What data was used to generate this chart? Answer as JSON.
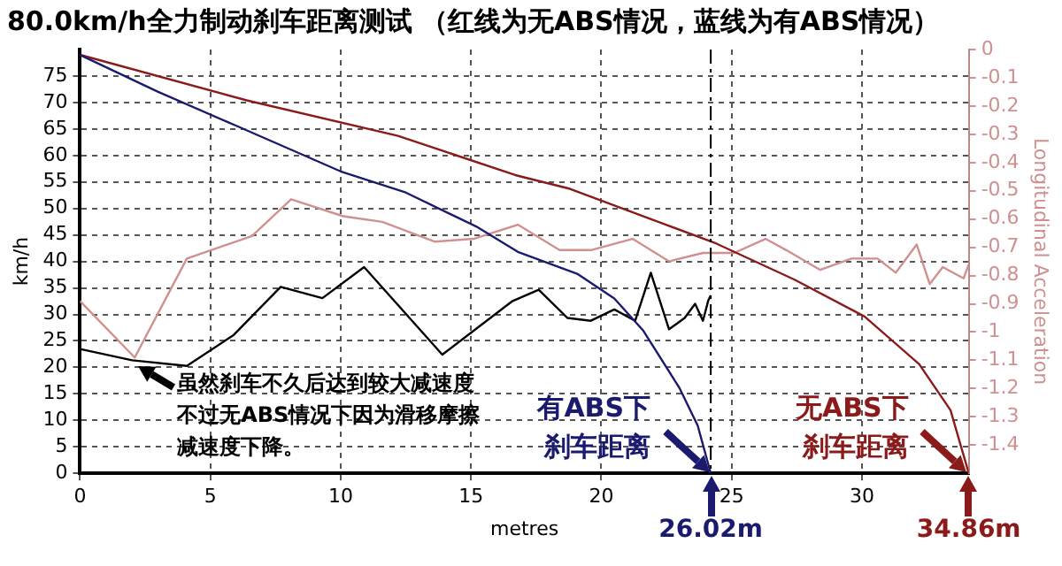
{
  "chart_data": {
    "type": "line",
    "title": "80.0km/h全力制动刹车距离测试 （红线为无ABS情况，蓝线为有ABS情况）",
    "xlabel": "metres",
    "ylabel": "km/h",
    "y2label": "Longitudinal Acceleration",
    "xlim": [
      0,
      34.1
    ],
    "xticks": [
      0,
      5,
      10,
      15,
      20,
      25,
      30
    ],
    "ylim": [
      0,
      80
    ],
    "yticks": [
      0,
      5,
      10,
      15,
      20,
      25,
      30,
      35,
      40,
      45,
      50,
      55,
      60,
      65,
      70,
      75
    ],
    "y2lim": [
      -1.5,
      0
    ],
    "y2ticks": [
      0,
      -0.1,
      -0.2,
      -0.3,
      -0.4,
      -0.5,
      -0.6,
      -0.7,
      -0.8,
      -0.9,
      -1,
      -1.1,
      -1.2,
      -1.3,
      -1.4
    ],
    "grid": true,
    "marker": "none",
    "line_style": "solid",
    "series": [
      {
        "color": "#1a1a6e",
        "x": [
          0,
          3,
          6,
          10,
          12.5,
          15.2,
          16.8,
          19.1,
          20.5,
          21.6,
          23,
          23.7,
          24.2
        ],
        "values": [
          79,
          72,
          65.6,
          57,
          53,
          46.6,
          41.8,
          37.6,
          33,
          27,
          16.1,
          9,
          0
        ]
      },
      {
        "color": "#8b1a1a",
        "x": [
          0,
          6.4,
          12.2,
          16.7,
          18.8,
          24.4,
          27.4,
          30.1,
          32.2,
          33.4,
          34.1
        ],
        "values": [
          79,
          70.4,
          63.7,
          56.3,
          53.7,
          43.4,
          36.6,
          29.6,
          20.6,
          11.9,
          0
        ]
      },
      {
        "color": "#d09090",
        "axis": "y2",
        "x": [
          0,
          2.1,
          4.1,
          6.6,
          8.1,
          10.1,
          11.6,
          13.6,
          15.1,
          16.8,
          18.4,
          19.6,
          21.2,
          22.6,
          23.9,
          25.1,
          26.3,
          27.1,
          28.4,
          29.6,
          30.6,
          31.3,
          32.1,
          32.6,
          33.1,
          33.9,
          34.1
        ],
        "values": [
          -0.89,
          -1.09,
          -0.74,
          -0.66,
          -0.53,
          -0.59,
          -0.61,
          -0.68,
          -0.67,
          -0.62,
          -0.71,
          -0.71,
          -0.67,
          -0.75,
          -0.72,
          -0.72,
          -0.67,
          -0.71,
          -0.78,
          -0.74,
          -0.74,
          -0.79,
          -0.69,
          -0.83,
          -0.77,
          -0.81,
          -0.76
        ]
      },
      {
        "color": "#000000",
        "axis": "y2",
        "x": [
          0,
          2,
          4.1,
          5.9,
          7.7,
          9.3,
          10.9,
          13.9,
          16.6,
          17.6,
          18.7,
          19.6,
          20.5,
          21.3,
          21.9,
          22.6,
          23.2,
          23.6,
          23.9,
          24.1,
          24.2
        ],
        "values": [
          -1.06,
          -1.1,
          -1.12,
          -1.01,
          -0.84,
          -0.88,
          -0.77,
          -1.08,
          -0.89,
          -0.85,
          -0.95,
          -0.96,
          -0.92,
          -0.96,
          -0.79,
          -0.99,
          -0.95,
          -0.9,
          -0.96,
          -0.89,
          -0.87
        ]
      }
    ],
    "ref_lines": [
      {
        "axis": "x",
        "value": 24.2,
        "color": "#000000",
        "line_style": "dashed"
      }
    ],
    "annotations": [
      {
        "text": "虽然刹车不久后达到较大减速度不过无ABS情况下因为滑移摩擦减速度下降。",
        "x": 2.1,
        "y": 21
      },
      {
        "text": "有ABS下刹车距离",
        "x": 24.2,
        "y": 0
      },
      {
        "text": "26.02m",
        "x": 24.2,
        "y": 0
      },
      {
        "text": "无ABS下刹车距离",
        "x": 34.1,
        "y": 0
      },
      {
        "text": "34.86m",
        "x": 34.1,
        "y": 0
      }
    ]
  }
}
